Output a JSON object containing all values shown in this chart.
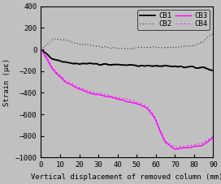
{
  "background_color": "#c0c0c0",
  "xlim": [
    0,
    90
  ],
  "ylim": [
    -1000,
    400
  ],
  "yticks": [
    -1000,
    -800,
    -600,
    -400,
    -200,
    0,
    200,
    400
  ],
  "xticks": [
    0,
    10,
    20,
    30,
    40,
    50,
    60,
    70,
    80,
    90
  ],
  "xlabel": "Vertical displacement of removed column (mm)",
  "ylabel": "Strain (με)",
  "legend_labels": [
    "CB1",
    "CB2",
    "CB3",
    "CB4"
  ],
  "axis_fontsize": 6.5,
  "tick_fontsize": 6.5,
  "figsize": [
    2.72,
    2.27
  ],
  "dpi": 100,
  "cb1_x": [
    0,
    3,
    6,
    10,
    15,
    20,
    25,
    30,
    35,
    40,
    45,
    50,
    55,
    60,
    65,
    70,
    75,
    80,
    85,
    90
  ],
  "cb1_y": [
    0,
    -40,
    -90,
    -110,
    -125,
    -135,
    -130,
    -140,
    -138,
    -142,
    -145,
    -148,
    -150,
    -152,
    -155,
    -158,
    -160,
    -165,
    -170,
    -200
  ],
  "cb2_x": [
    0,
    2,
    5,
    8,
    12,
    18,
    25,
    35,
    45,
    55,
    65,
    75,
    80,
    85,
    90
  ],
  "cb2_y": [
    0,
    30,
    80,
    100,
    90,
    60,
    35,
    20,
    10,
    15,
    20,
    30,
    40,
    80,
    150
  ],
  "cb3_x": [
    0,
    3,
    5,
    8,
    12,
    18,
    25,
    30,
    35,
    40,
    45,
    48,
    50,
    52,
    55,
    58,
    60,
    62,
    65,
    68,
    70,
    75,
    80,
    85,
    90
  ],
  "cb3_y": [
    0,
    -80,
    -150,
    -220,
    -290,
    -350,
    -400,
    -420,
    -440,
    -460,
    -480,
    -490,
    -500,
    -510,
    -540,
    -590,
    -660,
    -750,
    -860,
    -900,
    -920,
    -910,
    -900,
    -880,
    -820
  ],
  "cb4_x": [
    0,
    3,
    5,
    8,
    12,
    18,
    25,
    30,
    35,
    40,
    45,
    48,
    50,
    52,
    55,
    58,
    60,
    62,
    65,
    68,
    70,
    75,
    80,
    85,
    90
  ],
  "cb4_y": [
    0,
    -70,
    -140,
    -210,
    -275,
    -335,
    -385,
    -405,
    -425,
    -445,
    -465,
    -475,
    -485,
    -495,
    -525,
    -575,
    -645,
    -735,
    -845,
    -885,
    -905,
    -895,
    -885,
    -865,
    -800
  ]
}
